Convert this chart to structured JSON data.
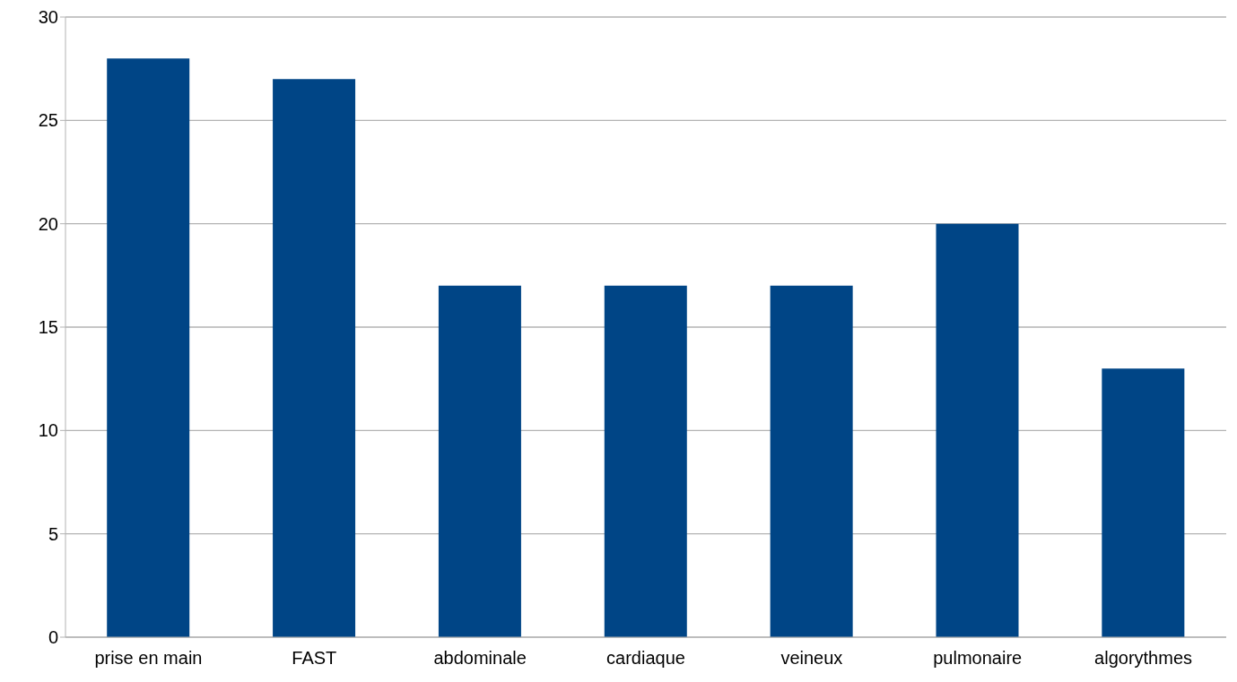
{
  "chart_data": {
    "type": "bar",
    "categories": [
      "prise en main",
      "FAST",
      "abdominale",
      "cardiaque",
      "veineux",
      "pulmonaire",
      "algorythmes"
    ],
    "values": [
      28,
      27,
      17,
      17,
      17,
      20,
      13
    ],
    "color": "#004586",
    "ylim": [
      0,
      30
    ],
    "yticks": [
      0,
      5,
      10,
      15,
      20,
      25,
      30
    ],
    "grid": "y"
  }
}
